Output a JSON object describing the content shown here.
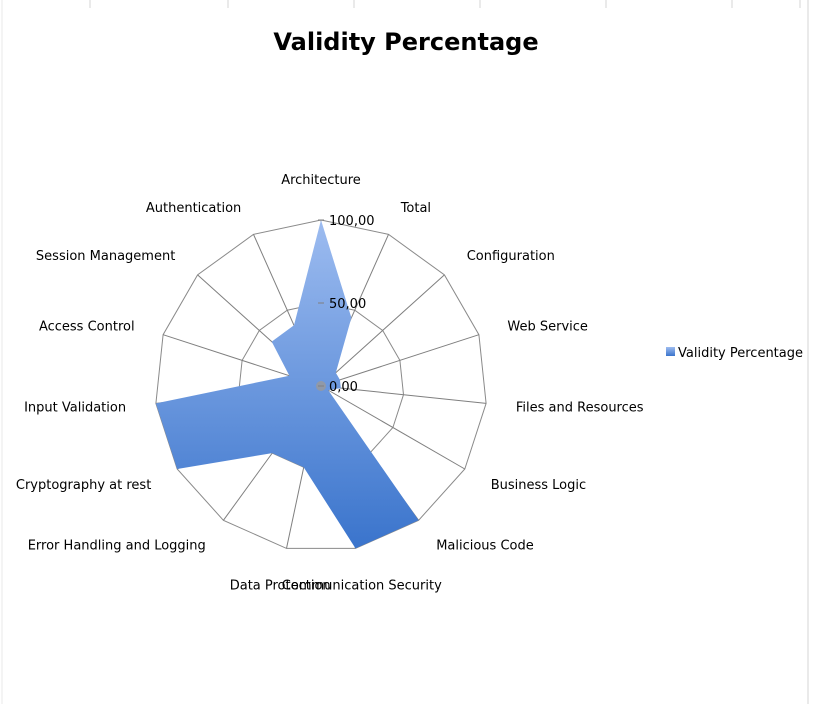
{
  "chart_data": {
    "type": "radar",
    "title": "Validity Percentage",
    "categories": [
      "Architecture",
      "Total",
      "Configuration",
      "Web Service",
      "Files and Resources",
      "Business Logic",
      "Malicious Code",
      "Communication Security",
      "Data Protection",
      "Error Handling and Logging",
      "Cryptography at rest",
      "Input Validation",
      "Access Control",
      "Session Management",
      "Authentication"
    ],
    "series": [
      {
        "name": "Validity Percentage",
        "values": [
          100,
          45,
          12,
          12,
          12,
          5,
          100,
          100,
          50,
          50,
          100,
          100,
          20,
          40,
          40
        ]
      }
    ],
    "ylim": [
      0,
      100
    ],
    "tick_labels": [
      "0,00",
      "50,00",
      "100,00"
    ],
    "grid": true,
    "legend_position": "right",
    "colors": {
      "fill_top": "#9dbcf0",
      "fill_bottom": "#3a74cc",
      "grid": "#8a8a8a",
      "axis": "#7f7f7f"
    }
  }
}
